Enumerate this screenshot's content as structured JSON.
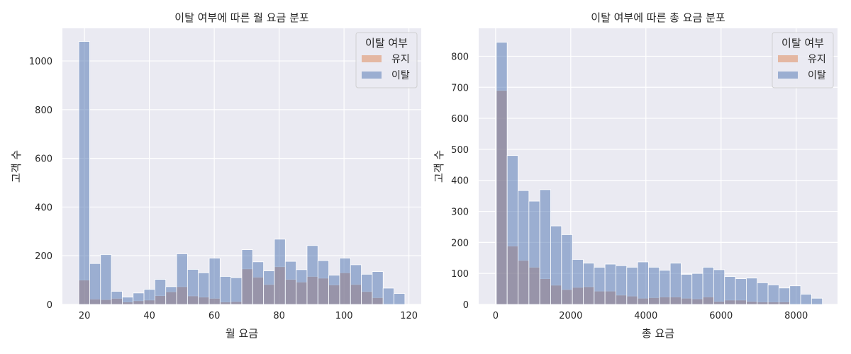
{
  "chart_data": [
    {
      "type": "bar",
      "title": "이탈 여부에 따른 월 요금 분포",
      "xlabel": "월 요금",
      "ylabel": "고객 수",
      "xlim": [
        13.2,
        123.8
      ],
      "ylim": [
        0,
        1134
      ],
      "xticks": [
        20,
        40,
        60,
        80,
        100,
        120
      ],
      "yticks": [
        0,
        200,
        400,
        600,
        800,
        1000
      ],
      "grid": true,
      "legend_title": "이탈 여부",
      "legend_position": "top-right",
      "bin_start": 18.25,
      "bin_width": 3.35,
      "series": [
        {
          "name": "유지",
          "color": "#dd8452",
          "values": [
            100,
            22,
            20,
            25,
            10,
            15,
            18,
            36,
            52,
            73,
            35,
            30,
            25,
            10,
            12,
            146,
            112,
            82,
            155,
            103,
            92,
            115,
            108,
            80,
            130,
            82,
            53,
            28,
            0,
            0
          ]
        },
        {
          "name": "이탈",
          "color": "#4c72b0",
          "values": [
            1080,
            168,
            205,
            54,
            30,
            47,
            62,
            103,
            73,
            208,
            144,
            130,
            190,
            115,
            110,
            225,
            175,
            138,
            268,
            177,
            143,
            242,
            180,
            120,
            190,
            163,
            124,
            135,
            67,
            45
          ]
        }
      ]
    },
    {
      "type": "bar",
      "title": "이탈 여부에 따른 총 요금 분포",
      "xlabel": "총 요금",
      "ylabel": "고객 수",
      "xlim": [
        -450,
        9100
      ],
      "ylim": [
        0,
        890
      ],
      "xticks": [
        0,
        2000,
        4000,
        6000,
        8000
      ],
      "yticks": [
        0,
        100,
        200,
        300,
        400,
        500,
        600,
        700,
        800
      ],
      "grid": true,
      "legend_title": "이탈 여부",
      "legend_position": "top-right",
      "bin_start": 18.8,
      "bin_width": 289.3,
      "series": [
        {
          "name": "유지",
          "color": "#dd8452",
          "values": [
            690,
            188,
            142,
            120,
            83,
            62,
            48,
            55,
            57,
            43,
            43,
            30,
            27,
            20,
            22,
            24,
            24,
            20,
            18,
            24,
            10,
            14,
            14,
            10,
            8,
            8,
            8,
            0,
            0,
            0
          ]
        },
        {
          "name": "이탈",
          "color": "#4c72b0",
          "values": [
            845,
            480,
            367,
            333,
            370,
            253,
            225,
            145,
            133,
            120,
            130,
            125,
            120,
            137,
            120,
            110,
            133,
            97,
            100,
            120,
            112,
            90,
            83,
            85,
            70,
            63,
            53,
            60,
            33,
            20
          ]
        }
      ]
    }
  ]
}
